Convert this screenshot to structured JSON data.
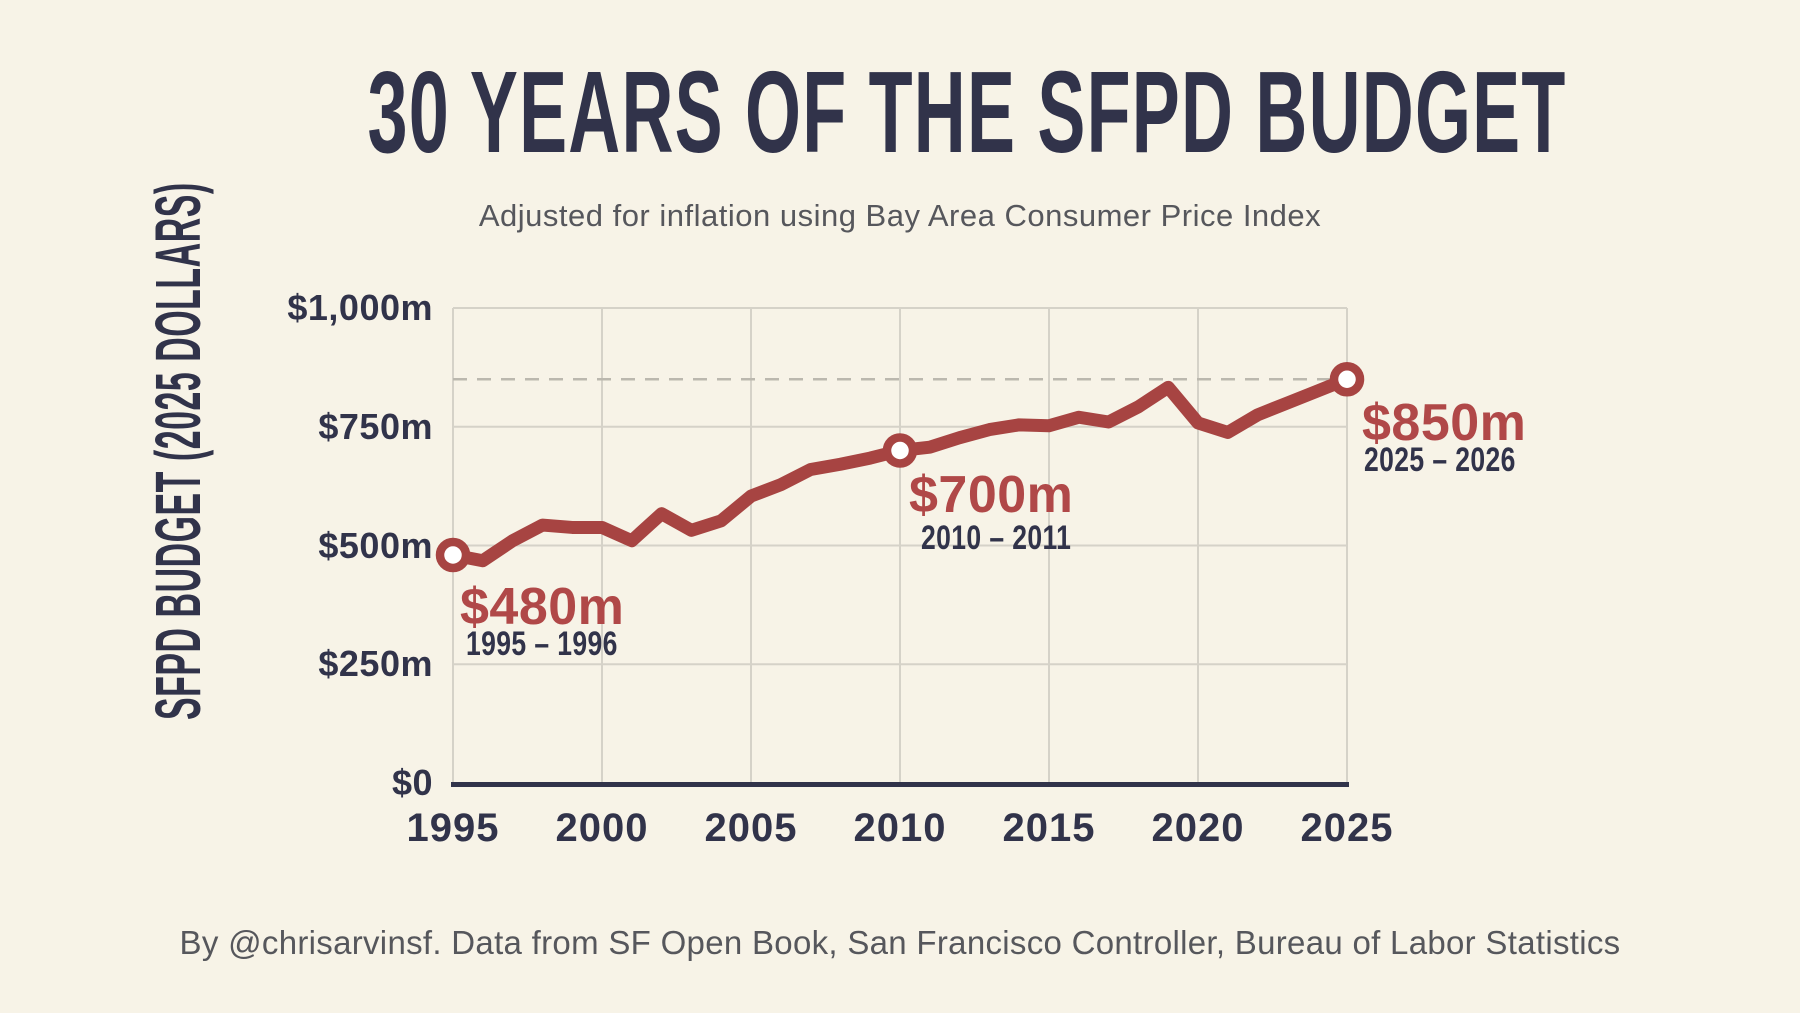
{
  "title": "30 YEARS OF THE SFPD BUDGET",
  "subtitle": "Adjusted for inflation using Bay Area Consumer Price Index",
  "footer": "By @chrisarvinsf. Data from SF Open Book, San Francisco Controller, Bureau of Labor Statistics",
  "colors": {
    "background": "#F7F3E7",
    "navy": "#31334A",
    "line_red": "#A74442",
    "label_red": "#B04848",
    "gray_text": "#56575C",
    "gridline": "#D5D2C8",
    "dashed_line": "#BBB8AE",
    "marker_fill": "#FFFFFF"
  },
  "chart_data": {
    "type": "line",
    "title": "30 YEARS OF THE SFPD BUDGET",
    "subtitle": "Adjusted for inflation using Bay Area Consumer Price Index",
    "xlabel": "",
    "ylabel": "SFPD BUDGET (2025 DOLLARS)",
    "xlim": [
      1995,
      2025
    ],
    "ylim": [
      0,
      1000
    ],
    "grid": true,
    "x": [
      1995,
      1996,
      1997,
      1998,
      1999,
      2000,
      2001,
      2002,
      2003,
      2004,
      2005,
      2006,
      2007,
      2008,
      2009,
      2010,
      2011,
      2012,
      2013,
      2014,
      2015,
      2016,
      2017,
      2018,
      2019,
      2020,
      2021,
      2022,
      2023,
      2024,
      2025
    ],
    "values": [
      480,
      468,
      510,
      543,
      538,
      538,
      510,
      567,
      532,
      552,
      604,
      628,
      660,
      671,
      684,
      700,
      707,
      727,
      744,
      754,
      752,
      770,
      760,
      792,
      833,
      758,
      738,
      775,
      800,
      825,
      850
    ],
    "x_ticks": [
      {
        "label": "1995",
        "value": 1995
      },
      {
        "label": "2000",
        "value": 2000
      },
      {
        "label": "2005",
        "value": 2005
      },
      {
        "label": "2010",
        "value": 2010
      },
      {
        "label": "2015",
        "value": 2015
      },
      {
        "label": "2020",
        "value": 2020
      },
      {
        "label": "2025",
        "value": 2025
      }
    ],
    "y_ticks": [
      {
        "label": "$1,000m",
        "value": 1000
      },
      {
        "label": "$750m",
        "value": 750
      },
      {
        "label": "$500m",
        "value": 500
      },
      {
        "label": "$250m",
        "value": 250
      },
      {
        "label": "$0",
        "value": 0
      }
    ],
    "reference_line": 850,
    "annotations": [
      {
        "year": 1995,
        "value": 480,
        "value_label": "$480m",
        "period_label": "1995 – 1996"
      },
      {
        "year": 2010,
        "value": 700,
        "value_label": "$700m",
        "period_label": "2010 – 2011"
      },
      {
        "year": 2025,
        "value": 850,
        "value_label": "$850m",
        "period_label": "2025 – 2026"
      }
    ]
  }
}
